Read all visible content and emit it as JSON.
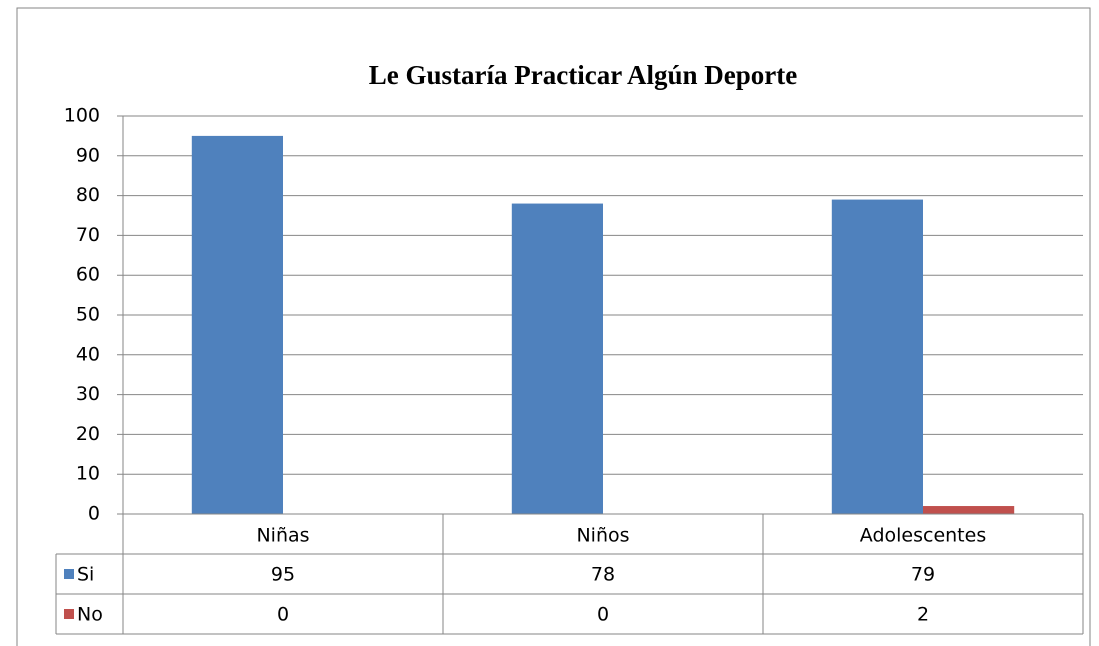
{
  "chart_data": {
    "type": "bar",
    "title": "Le Gustaría Practicar Algún Deporte",
    "categories": [
      "Niñas",
      "Niños",
      "Adolescentes"
    ],
    "series": [
      {
        "name": "Si",
        "color": "#4f81bd",
        "values": [
          95,
          78,
          79
        ]
      },
      {
        "name": "No",
        "color": "#c0504d",
        "values": [
          0,
          0,
          2
        ]
      }
    ],
    "ylim": [
      0,
      100
    ],
    "yticks": [
      0,
      10,
      20,
      30,
      40,
      50,
      60,
      70,
      80,
      90,
      100
    ],
    "grid": true
  }
}
